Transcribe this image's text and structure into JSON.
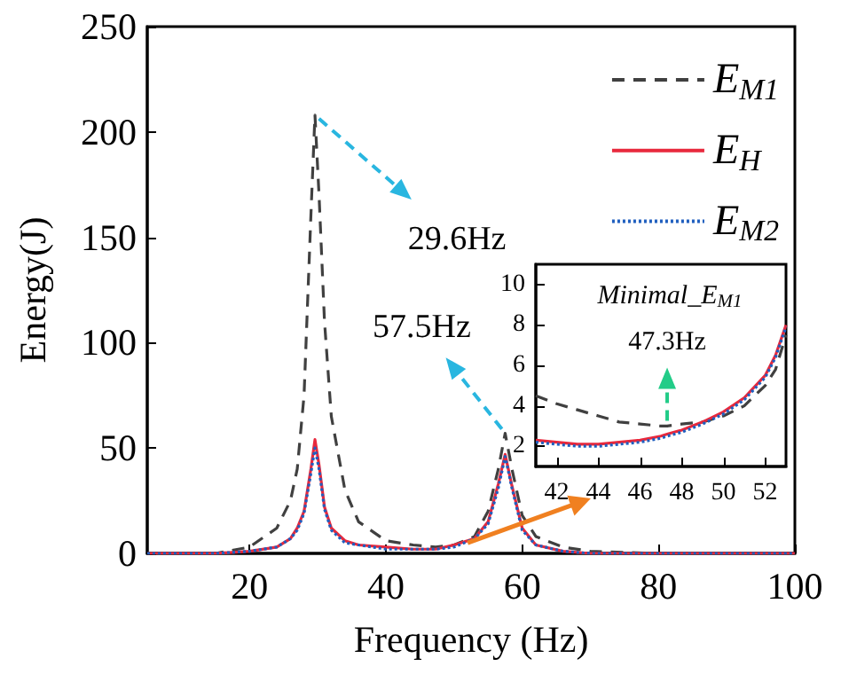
{
  "chart_data": [
    {
      "type": "line",
      "xlabel": "Frequency (Hz)",
      "ylabel": "Energy(J)",
      "xlim": [
        5,
        100
      ],
      "ylim": [
        0,
        250
      ],
      "xticks": [
        20,
        40,
        60,
        80,
        100
      ],
      "yticks": [
        0,
        50,
        100,
        150,
        200,
        250
      ],
      "grid": false,
      "legend": "top right",
      "marker": "none",
      "x": [
        5,
        15,
        20,
        24,
        26,
        27,
        28,
        29,
        29.6,
        30.2,
        31,
        32,
        34,
        36,
        40,
        44,
        47.3,
        50,
        53,
        55,
        56.5,
        57.5,
        58.5,
        60,
        62,
        66,
        70,
        80,
        100
      ],
      "series": [
        {
          "name": "E$_{M1}$",
          "color": "#404040",
          "line_style": "dashed",
          "values": [
            0,
            0,
            3,
            12,
            25,
            40,
            75,
            160,
            208,
            170,
            110,
            65,
            30,
            15,
            6,
            4,
            3,
            4,
            8,
            20,
            40,
            57,
            40,
            18,
            8,
            3,
            1,
            0,
            0
          ]
        },
        {
          "name": "E$_{H}$",
          "color": "#e8283c",
          "line_style": "solid",
          "values": [
            0,
            0,
            1,
            3,
            7,
            12,
            20,
            40,
            54,
            42,
            22,
            12,
            6,
            4,
            3,
            2,
            2,
            4,
            7,
            15,
            33,
            47,
            32,
            12,
            4,
            1,
            0,
            0,
            0
          ]
        },
        {
          "name": "E$_{M2}$",
          "color": "#1f5fbf",
          "line_style": "dotted",
          "values": [
            0,
            0,
            1,
            3,
            7,
            11,
            19,
            38,
            50,
            40,
            21,
            11,
            5,
            4,
            2,
            2,
            2,
            3,
            7,
            14,
            31,
            46,
            31,
            11,
            4,
            1,
            0,
            0,
            0
          ]
        }
      ],
      "annotations": [
        {
          "text": "29.6Hz",
          "x": 29.6,
          "y": 208
        },
        {
          "text": "57.5Hz",
          "x": 57.5,
          "y": 57
        }
      ]
    },
    {
      "type": "line",
      "title": "Minimal_E$_{M1}$",
      "xlim": [
        41,
        53
      ],
      "ylim": [
        1,
        11
      ],
      "xticks": [
        42,
        44,
        46,
        48,
        50,
        52
      ],
      "yticks": [
        2,
        4,
        6,
        8,
        10
      ],
      "grid": false,
      "marker": "none",
      "x": [
        41,
        42,
        43,
        44,
        45,
        46,
        47,
        47.3,
        48,
        49,
        50,
        51,
        52,
        52.5,
        53
      ],
      "series": [
        {
          "color": "#404040",
          "line_style": "dashed",
          "values": [
            4.5,
            4.1,
            3.8,
            3.5,
            3.2,
            3.1,
            3,
            3,
            3.1,
            3.2,
            3.5,
            4,
            5,
            5.8,
            7.5
          ]
        },
        {
          "color": "#e8283c",
          "line_style": "solid",
          "values": [
            2.3,
            2.2,
            2.1,
            2.1,
            2.2,
            2.3,
            2.5,
            2.6,
            2.8,
            3.2,
            3.7,
            4.4,
            5.5,
            6.5,
            8
          ]
        },
        {
          "color": "#1f5fbf",
          "line_style": "dotted",
          "values": [
            2.2,
            2.1,
            2,
            2,
            2.1,
            2.2,
            2.4,
            2.5,
            2.7,
            3.1,
            3.6,
            4.3,
            5.4,
            6.4,
            7.9
          ]
        }
      ],
      "annotations": [
        {
          "text": "47.3Hz",
          "x": 47.3,
          "y": 3
        }
      ]
    }
  ]
}
